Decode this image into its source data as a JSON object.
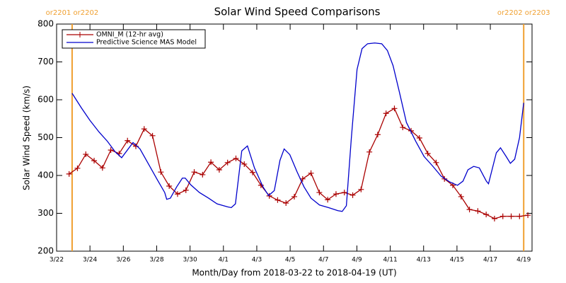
{
  "chart_data": {
    "type": "line",
    "title": "Solar Wind Speed Comparisons",
    "xlabel": "Month/Day from 2018-03-22 to 2018-04-19 (UT)",
    "ylabel": "Solar Wind Speed (km/s)",
    "xlim": [
      0,
      28.5
    ],
    "xticks": [
      {
        "value": 0,
        "label": "3/22"
      },
      {
        "value": 2,
        "label": "3/24"
      },
      {
        "value": 4,
        "label": "3/26"
      },
      {
        "value": 6,
        "label": "3/28"
      },
      {
        "value": 8,
        "label": "3/30"
      },
      {
        "value": 10,
        "label": "4/1"
      },
      {
        "value": 12,
        "label": "4/3"
      },
      {
        "value": 14,
        "label": "4/5"
      },
      {
        "value": 16,
        "label": "4/7"
      },
      {
        "value": 18,
        "label": "4/9"
      },
      {
        "value": 20,
        "label": "4/11"
      },
      {
        "value": 22,
        "label": "4/13"
      },
      {
        "value": 24,
        "label": "4/15"
      },
      {
        "value": 26,
        "label": "4/17"
      },
      {
        "value": 28,
        "label": "4/19"
      }
    ],
    "ylim": [
      200,
      800
    ],
    "yticks": [
      200,
      300,
      400,
      500,
      600,
      700,
      800
    ],
    "legend": "upper left",
    "annotations": [
      {
        "text": "or2201 or2202",
        "x": 0.93,
        "color": "#f0a030"
      },
      {
        "text": "or2202 or2203",
        "x": 28,
        "color": "#f0a030"
      }
    ],
    "series": [
      {
        "name": "OMNI_M (12-hr avg)",
        "color": "#aa0000",
        "marker": "+",
        "x": [
          0.75,
          1.25,
          1.75,
          2.25,
          2.75,
          3.25,
          3.75,
          4.25,
          4.75,
          5.25,
          5.75,
          6.25,
          6.75,
          7.25,
          7.75,
          8.25,
          8.75,
          9.25,
          9.75,
          10.25,
          10.75,
          11.25,
          11.75,
          12.25,
          12.75,
          13.25,
          13.75,
          14.25,
          14.75,
          15.25,
          15.75,
          16.25,
          16.75,
          17.25,
          17.75,
          18.25,
          18.75,
          19.25,
          19.75,
          20.25,
          20.75,
          21.25,
          21.75,
          22.25,
          22.75,
          23.25,
          23.75,
          24.25,
          24.75,
          25.25,
          25.75,
          26.25,
          26.75,
          27.25,
          27.75,
          28.25
        ],
        "values": [
          404,
          419,
          456,
          439,
          420,
          467,
          458,
          492,
          477,
          523,
          505,
          409,
          372,
          351,
          361,
          409,
          402,
          435,
          415,
          434,
          445,
          430,
          408,
          374,
          346,
          335,
          327,
          344,
          391,
          406,
          355,
          336,
          351,
          355,
          348,
          363,
          462,
          508,
          564,
          577,
          527,
          518,
          499,
          458,
          434,
          391,
          374,
          344,
          310,
          306,
          297,
          286,
          292,
          292,
          292,
          295
        ]
      },
      {
        "name": "Predictive Science MAS Model",
        "color": "#0000cc",
        "marker": "none",
        "x": [
          0.93,
          1.48,
          1.99,
          2.54,
          3.05,
          3.52,
          3.9,
          4.58,
          5.0,
          5.51,
          6.02,
          6.48,
          6.6,
          6.82,
          7.2,
          7.54,
          7.71,
          8.05,
          8.56,
          9.11,
          9.62,
          10.25,
          10.47,
          10.72,
          11.1,
          11.44,
          11.86,
          12.37,
          12.71,
          13.05,
          13.39,
          13.64,
          13.98,
          14.41,
          14.83,
          15.25,
          15.76,
          16.31,
          16.86,
          17.12,
          17.37,
          17.67,
          18.01,
          18.31,
          18.64,
          19.07,
          19.49,
          19.83,
          20.17,
          20.55,
          20.97,
          21.53,
          22.03,
          22.54,
          23.05,
          23.56,
          24.03,
          24.36,
          24.66,
          25.0,
          25.34,
          25.76,
          25.89,
          26.36,
          26.61,
          26.95,
          27.2,
          27.46,
          27.75,
          28.0
        ],
        "values": [
          617,
          579,
          546,
          515,
          490,
          462,
          447,
          487,
          470,
          430,
          390,
          355,
          337,
          340,
          370,
          393,
          393,
          375,
          355,
          340,
          325,
          317,
          315,
          325,
          465,
          478,
          420,
          370,
          347,
          360,
          440,
          470,
          455,
          410,
          370,
          340,
          322,
          315,
          307,
          305,
          320,
          500,
          680,
          735,
          748,
          750,
          748,
          730,
          690,
          620,
          540,
          490,
          450,
          425,
          398,
          383,
          374,
          385,
          415,
          424,
          420,
          385,
          378,
          460,
          473,
          450,
          432,
          443,
          500,
          592
        ]
      }
    ]
  }
}
